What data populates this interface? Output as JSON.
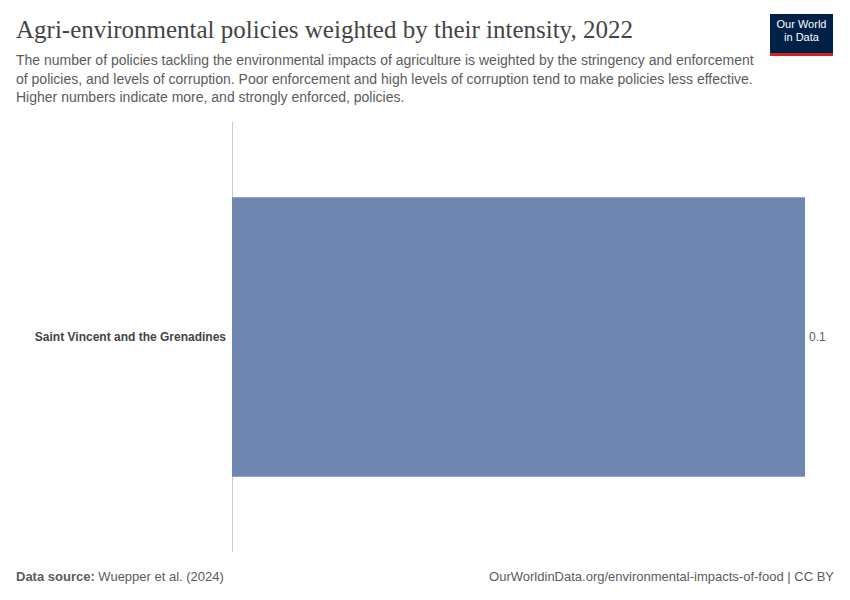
{
  "chart_data": {
    "type": "bar",
    "orientation": "horizontal",
    "title": "Agri-environmental policies weighted by their intensity, 2022",
    "subtitle": "The number of policies tackling the environmental impacts of agriculture is weighted by the stringency and enforcement of policies, and levels of corruption. Poor enforcement and high levels of corruption tend to make policies less effective. Higher numbers indicate more, and strongly enforced, policies.",
    "categories": [
      "Saint Vincent and the Grenadines"
    ],
    "values": [
      0.1
    ],
    "color": "#6d87b0",
    "xlim": [
      0,
      0.1
    ],
    "tick_labels": "y",
    "grid": false,
    "data_labels": true,
    "source_label": "Data source:",
    "source": "Wuepper et al. (2024)",
    "url": "OurWorldinData.org/environmental-impacts-of-food | CC BY",
    "logo": [
      "Our World",
      "in Data"
    ]
  }
}
